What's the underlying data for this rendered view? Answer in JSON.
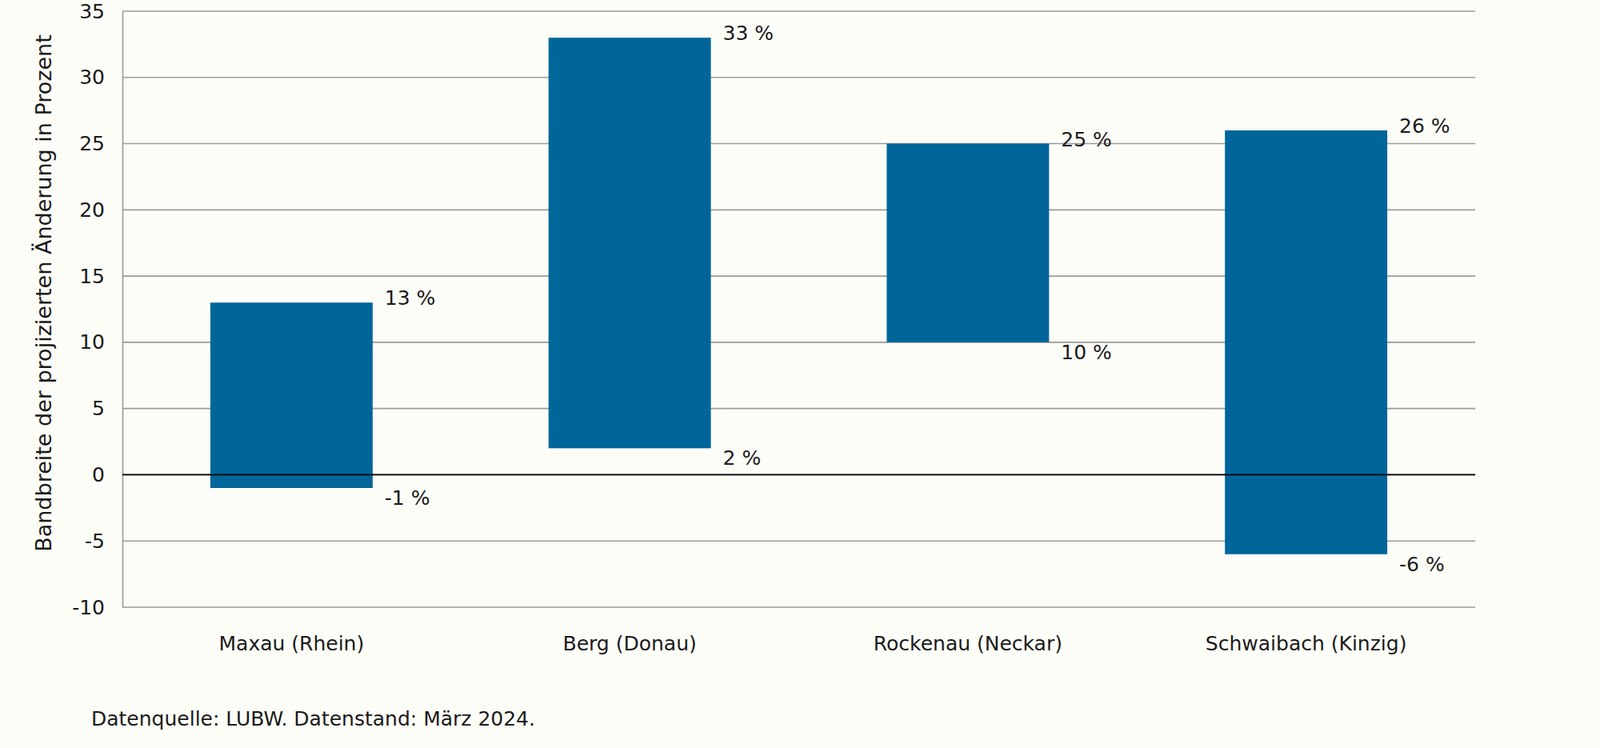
{
  "chart_data": {
    "type": "range_bar",
    "y_label": "Bandbreite der projizierten Änderung in Prozent",
    "source": "Datenquelle: LUBW. Datenstand: März 2024.",
    "categories": [
      "Maxau (Rhein)",
      "Berg (Donau)",
      "Rockenau (Neckar)",
      "Schwaibach (Kinzig)"
    ],
    "values": [
      [
        -1,
        13
      ],
      [
        2,
        33
      ],
      [
        10,
        25
      ],
      [
        -6,
        26
      ]
    ],
    "value_labels": [
      [
        "-1 %",
        "13 %"
      ],
      [
        "2 %",
        "33 %"
      ],
      [
        "10 %",
        "25 %"
      ],
      [
        "-6 %",
        "26 %"
      ]
    ],
    "color": "#00669a",
    "ylim": [
      -10,
      35
    ],
    "yticks": [
      -10,
      -5,
      0,
      5,
      10,
      15,
      20,
      25,
      30,
      35
    ],
    "grid": true,
    "data_labels": true
  }
}
